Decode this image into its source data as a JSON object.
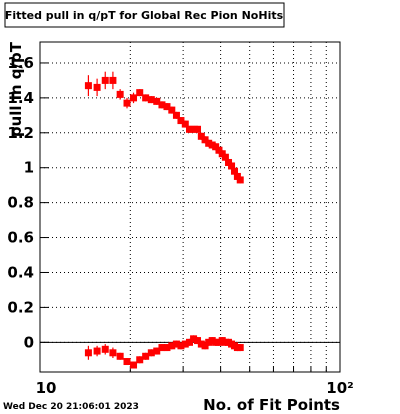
{
  "chart_data": {
    "type": "scatter",
    "title": "Fitted pull in q/pT for Global Rec Pion NoHits",
    "x_label": "No. of Fit Points",
    "y_label": "pull in q/pT",
    "timestamp": "Wed Dec 20 21:06:01 2023",
    "log_x": true,
    "grid": true,
    "xlim": [
      10,
      100
    ],
    "xticks": [
      10,
      {
        "value": 100,
        "label": "10²"
      }
    ],
    "xminor": [
      20,
      30,
      40,
      50,
      60,
      70,
      80,
      90
    ],
    "ylim": [
      -0.17,
      1.72
    ],
    "yticks": [
      0,
      0.2,
      0.4,
      0.6,
      0.8,
      1,
      1.2,
      1.4,
      1.6
    ],
    "x": [
      14.5,
      15.5,
      16.5,
      17.5,
      18.5,
      19.5,
      20.5,
      21.5,
      22.5,
      23.5,
      24.5,
      25.5,
      26.5,
      27.5,
      28.5,
      29.5,
      30.5,
      31.5,
      32.5,
      33.5,
      34.5,
      35.5,
      36.5,
      37.5,
      38.5,
      39.5,
      40.5,
      41.5,
      42.5,
      43.5,
      44.5,
      45.5,
      46.5
    ],
    "series": [
      {
        "color": "#ff0000",
        "values": [
          1.47,
          1.46,
          1.5,
          1.5,
          1.42,
          1.37,
          1.4,
          1.43,
          1.4,
          1.39,
          1.38,
          1.36,
          1.35,
          1.33,
          1.3,
          1.27,
          1.25,
          1.22,
          1.22,
          1.22,
          1.18,
          1.16,
          1.14,
          1.13,
          1.12,
          1.1,
          1.08,
          1.06,
          1.03,
          1.01,
          0.98,
          0.95,
          0.93
        ],
        "errors": [
          0.06,
          0.05,
          0.05,
          0.05,
          0.03,
          0.03,
          0.03,
          0.02,
          0.02,
          0.02,
          0.02,
          0.02,
          0.02,
          0.02,
          0.02,
          0.02,
          0.02,
          0.02,
          0.02,
          0.02,
          0.02,
          0.02,
          0.02,
          0.02,
          0.02,
          0.02,
          0.02,
          0.02,
          0.02,
          0.02,
          0.02,
          0.02,
          0.02
        ]
      },
      {
        "color": "#ff0000",
        "values": [
          -0.06,
          -0.05,
          -0.04,
          -0.06,
          -0.08,
          -0.11,
          -0.13,
          -0.1,
          -0.08,
          -0.06,
          -0.05,
          -0.03,
          -0.03,
          -0.02,
          -0.01,
          -0.02,
          -0.01,
          0,
          0.02,
          0.01,
          -0.01,
          -0.02,
          0,
          0.01,
          0,
          0,
          0.01,
          0,
          0,
          -0.01,
          -0.02,
          -0.03,
          -0.03
        ],
        "errors": [
          0.04,
          0.03,
          0.03,
          0.03,
          0.02,
          0.02,
          0.02,
          0.02,
          0.02,
          0.02,
          0.02,
          0.02,
          0.02,
          0.02,
          0.02,
          0.02,
          0.02,
          0.02,
          0.02,
          0.02,
          0.02,
          0.02,
          0.02,
          0.02,
          0.02,
          0.02,
          0.02,
          0.02,
          0.02,
          0.02,
          0.02,
          0.02,
          0.02
        ]
      }
    ]
  }
}
